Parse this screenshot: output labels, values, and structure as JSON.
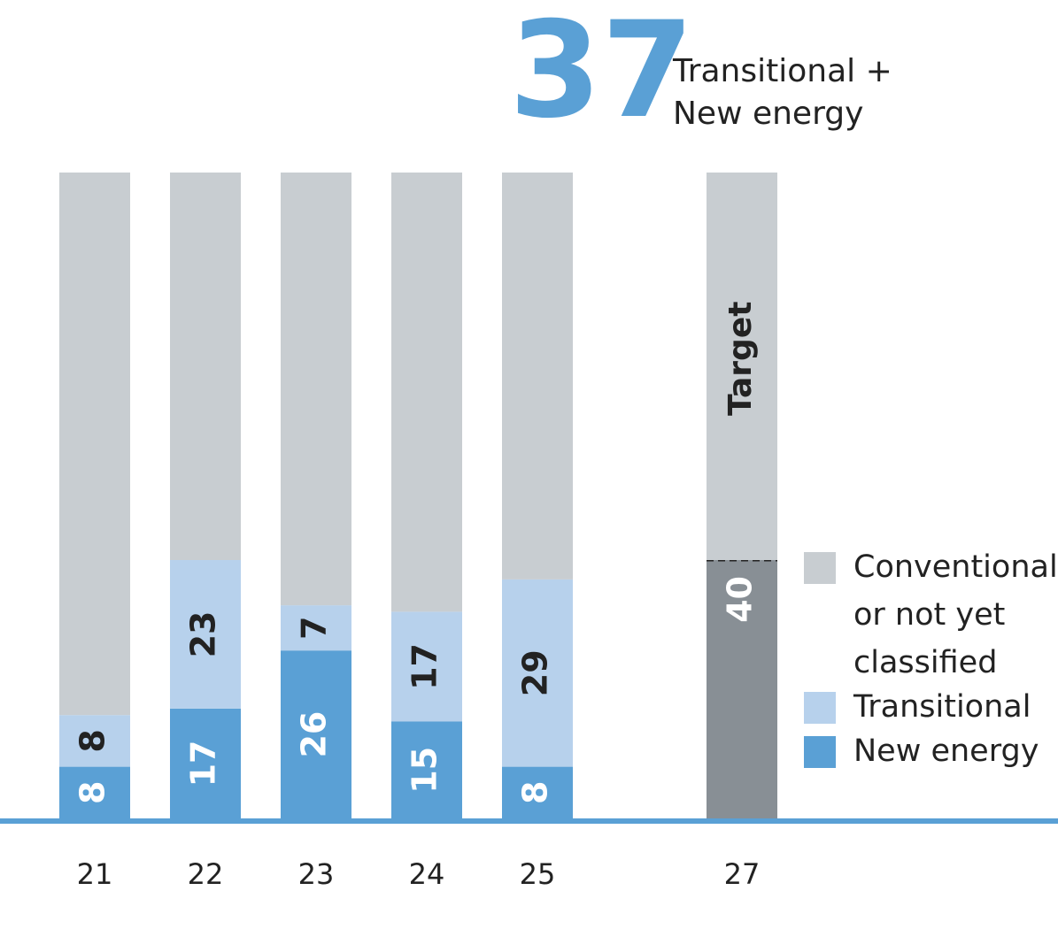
{
  "chart_data": {
    "type": "bar",
    "stacked": true,
    "headline": {
      "value": 37,
      "text": [
        "Transitional +",
        "New energy"
      ],
      "color": "#5aa0d5"
    },
    "categories": [
      "21",
      "22",
      "23",
      "24",
      "25",
      "27"
    ],
    "series": [
      {
        "name": "New energy",
        "color": "#5aa0d5",
        "values": [
          8,
          17,
          26,
          15,
          8,
          null
        ],
        "show_labels": true
      },
      {
        "name": "Transitional",
        "color": "#b7d1ec",
        "values": [
          8,
          23,
          7,
          17,
          29,
          null
        ],
        "show_labels": true
      },
      {
        "name": "Conventional or not yet classified",
        "color": "#c8cdd1",
        "values": [
          84,
          60,
          67,
          68,
          63,
          60
        ],
        "show_labels": false
      }
    ],
    "target": {
      "category": "27",
      "label": "Target",
      "value": 40,
      "color": "#888f95"
    },
    "ylim": [
      0,
      100
    ],
    "axis_color": "#5aa0d5"
  }
}
